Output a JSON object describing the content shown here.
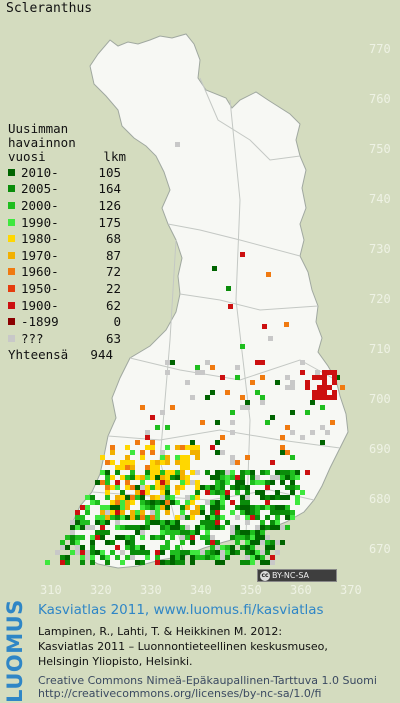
{
  "title": "Scleranthus",
  "legend": {
    "heading": [
      "Uusimman",
      "havainnon"
    ],
    "col_period": "vuosi",
    "col_count": "lkm",
    "rows": [
      {
        "label": "2010-",
        "count": "105",
        "color": "#006400"
      },
      {
        "label": "2005-",
        "count": "164",
        "color": "#0a8c0a"
      },
      {
        "label": "2000-",
        "count": "126",
        "color": "#1fbe1f"
      },
      {
        "label": "1990-",
        "count": "175",
        "color": "#3ee83e"
      },
      {
        "label": "1980-",
        "count": "68",
        "color": "#ffd700"
      },
      {
        "label": "1970-",
        "count": "87",
        "color": "#f2b000"
      },
      {
        "label": "1960-",
        "count": "72",
        "color": "#f07a10"
      },
      {
        "label": "1950-",
        "count": "22",
        "color": "#e53c0c"
      },
      {
        "label": "1900-",
        "count": "62",
        "color": "#cc1010"
      },
      {
        "label": "-1899",
        "count": "0",
        "color": "#8b0000"
      },
      {
        "label": "???",
        "count": "63",
        "color": "#c8c8c8"
      }
    ],
    "total_label": "Yhteensä",
    "total_count": "944"
  },
  "y_ticks": [
    "770",
    "760",
    "750",
    "740",
    "730",
    "720",
    "710",
    "700",
    "690",
    "680",
    "670"
  ],
  "x_ticks": [
    "310",
    "320",
    "330",
    "340",
    "350",
    "360",
    "370"
  ],
  "cc_badge": {
    "icon": "cc",
    "text": "BY-NC-SA"
  },
  "footer": {
    "brand": "LUOMUS",
    "atlas_line": "Kasviatlas 2011, www.luomus.fi/kasviatlas",
    "citation_1": "Lampinen, R., Lahti, T. & Heikkinen M. 2012:",
    "citation_2": "Kasviatlas 2011 – Luonnontieteellinen keskusmuseo,",
    "citation_3": "Helsingin Yliopisto, Helsinki.",
    "license_1": "Creative Commons Nimeä-Epäkaupallinen-Tarttuva 1.0 Suomi",
    "license_2": "http://creativecommons.org/licenses/by-nc-sa/1.0/fi"
  },
  "colors": {
    "background": "#d4dcbf",
    "land": "#f7f8f4",
    "border": "#a0a8a0",
    "brand": "#2f86c6"
  }
}
